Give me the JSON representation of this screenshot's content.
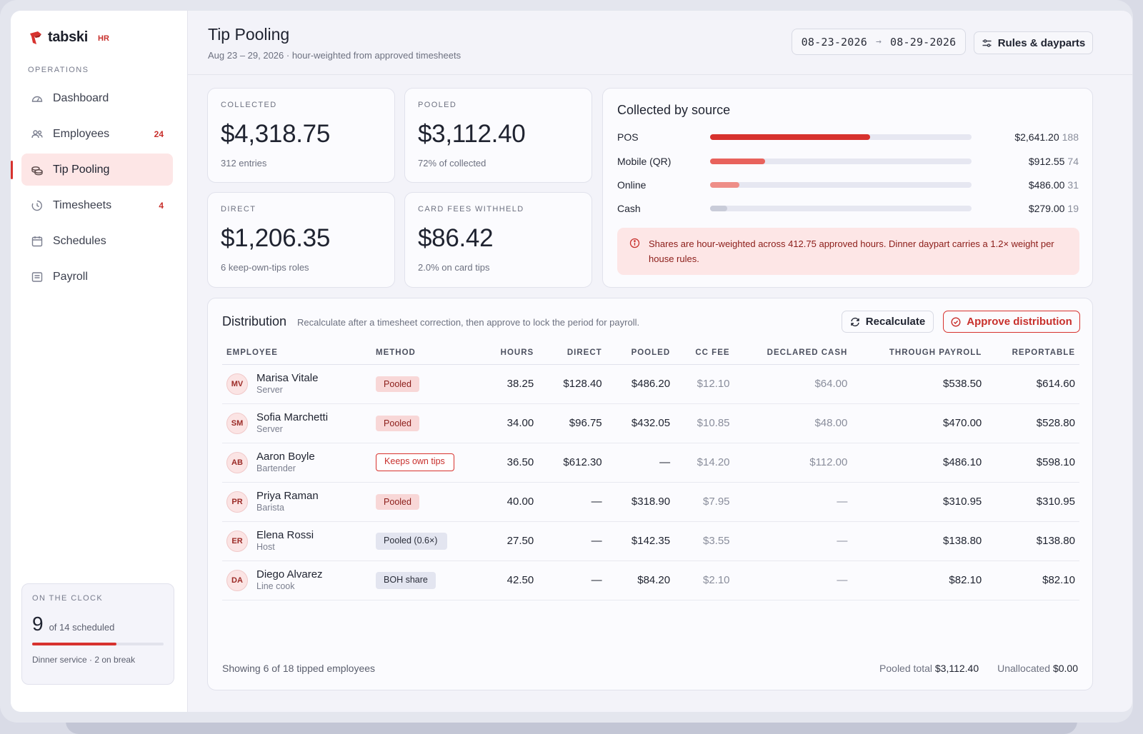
{
  "brand": {
    "name": "tabski",
    "tag": "HR"
  },
  "sidebar": {
    "section_label": "OPERATIONS",
    "items": [
      {
        "label": "Dashboard",
        "icon": "gauge-icon",
        "badge": ""
      },
      {
        "label": "Employees",
        "icon": "users-icon",
        "badge": "24"
      },
      {
        "label": "Tip Pooling",
        "icon": "coins-icon",
        "badge": "",
        "active": true
      },
      {
        "label": "Timesheets",
        "icon": "clock-icon",
        "badge": "4"
      },
      {
        "label": "Schedules",
        "icon": "calendar-icon",
        "badge": ""
      },
      {
        "label": "Payroll",
        "icon": "receipt-icon",
        "badge": ""
      }
    ],
    "clock": {
      "label": "ON THE CLOCK",
      "count": "9",
      "of_text": "of 14 scheduled",
      "progress": 0.643,
      "note": "Dinner service · 2 on break"
    }
  },
  "header": {
    "title": "Tip Pooling",
    "subtitle": "Aug 23 – 29, 2026 · hour-weighted from approved timesheets",
    "date_start": "08-23-2026",
    "date_end": "08-29-2026",
    "rules_label": "Rules & dayparts"
  },
  "stats": [
    {
      "label": "COLLECTED",
      "value": "$4,318.75",
      "sub": "312 entries"
    },
    {
      "label": "POOLED",
      "value": "$3,112.40",
      "sub": "72% of collected"
    },
    {
      "label": "DIRECT",
      "value": "$1,206.35",
      "sub": "6 keep-own-tips roles"
    },
    {
      "label": "CARD FEES WITHHELD",
      "value": "$86.42",
      "sub": "2.0% on card tips"
    }
  ],
  "sources": {
    "title": "Collected by source",
    "rows": [
      {
        "name": "POS",
        "amount": "$2,641.20",
        "count": "188",
        "share": 0.612,
        "color": "#d7322e"
      },
      {
        "name": "Mobile (QR)",
        "amount": "$912.55",
        "count": "74",
        "share": 0.211,
        "color": "#e8625c"
      },
      {
        "name": "Online",
        "amount": "$486.00",
        "count": "31",
        "share": 0.113,
        "color": "#ee8e88"
      },
      {
        "name": "Cash",
        "amount": "$279.00",
        "count": "19",
        "share": 0.065,
        "color": "#c9ccd9"
      }
    ],
    "notice": "Shares are hour-weighted across 412.75 approved hours. Dinner daypart carries a 1.2× weight per house rules."
  },
  "distribution": {
    "title": "Distribution",
    "hint": "Recalculate after a timesheet correction, then approve to lock the period for payroll.",
    "recalc_label": "Recalculate",
    "approve_label": "Approve distribution",
    "columns": [
      "EMPLOYEE",
      "METHOD",
      "HOURS",
      "DIRECT",
      "POOLED",
      "CC FEE",
      "DECLARED CASH",
      "THROUGH PAYROLL",
      "REPORTABLE"
    ],
    "rows": [
      {
        "initials": "MV",
        "name": "Marisa Vitale",
        "role": "Server",
        "method": "Pooled",
        "hours": "38.25",
        "direct": "$128.40",
        "pooled": "$486.20",
        "cc_fee": "$12.10",
        "declared": "$64.00",
        "payroll": "$538.50",
        "reportable": "$614.60"
      },
      {
        "initials": "SM",
        "name": "Sofia Marchetti",
        "role": "Server",
        "method": "Pooled",
        "hours": "34.00",
        "direct": "$96.75",
        "pooled": "$432.05",
        "cc_fee": "$10.85",
        "declared": "$48.00",
        "payroll": "$470.00",
        "reportable": "$528.80"
      },
      {
        "initials": "AB",
        "name": "Aaron Boyle",
        "role": "Bartender",
        "method": "Keeps own tips",
        "hours": "36.50",
        "direct": "$612.30",
        "pooled": "—",
        "cc_fee": "$14.20",
        "declared": "$112.00",
        "payroll": "$486.10",
        "reportable": "$598.10"
      },
      {
        "initials": "PR",
        "name": "Priya Raman",
        "role": "Barista",
        "method": "Pooled",
        "hours": "40.00",
        "direct": "—",
        "pooled": "$318.90",
        "cc_fee": "$7.95",
        "declared": "—",
        "payroll": "$310.95",
        "reportable": "$310.95"
      },
      {
        "initials": "ER",
        "name": "Elena Rossi",
        "role": "Host",
        "method": "Pooled (0.6×)",
        "hours": "27.50",
        "direct": "—",
        "pooled": "$142.35",
        "cc_fee": "$3.55",
        "declared": "—",
        "payroll": "$138.80",
        "reportable": "$138.80"
      },
      {
        "initials": "DA",
        "name": "Diego Alvarez",
        "role": "Line cook",
        "method": "BOH share",
        "hours": "42.50",
        "direct": "—",
        "pooled": "$84.20",
        "cc_fee": "$2.10",
        "declared": "—",
        "payroll": "$82.10",
        "reportable": "$82.10"
      }
    ],
    "footer_showing": "Showing 6 of 18 tipped employees",
    "pooled_total_label": "Pooled total",
    "pooled_total": "$3,112.40",
    "unallocated_label": "Unallocated",
    "unallocated": "$0.00"
  }
}
